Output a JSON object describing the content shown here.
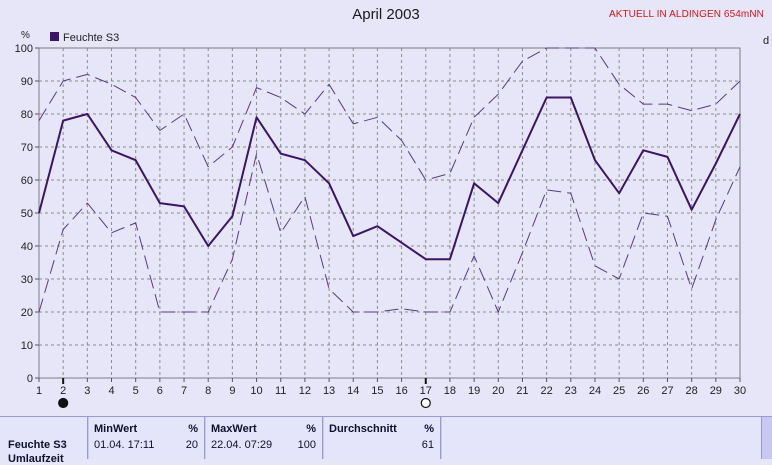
{
  "header": {
    "title": "April 2003",
    "status": "AKTUELL IN ALDINGEN 654mNN"
  },
  "chart_data": {
    "type": "line",
    "title": "April 2003",
    "ylabel": "%",
    "right_axis_label": "d",
    "x": [
      1,
      2,
      3,
      4,
      5,
      6,
      7,
      8,
      9,
      10,
      11,
      12,
      13,
      14,
      15,
      16,
      17,
      18,
      19,
      20,
      21,
      22,
      23,
      24,
      25,
      26,
      27,
      28,
      29,
      30
    ],
    "xlim": [
      1,
      30
    ],
    "ylim": [
      0,
      100
    ],
    "yticks": [
      0,
      10,
      20,
      30,
      40,
      50,
      60,
      70,
      80,
      90,
      100
    ],
    "grid": true,
    "legend_position": "top-left",
    "moon_markers": [
      {
        "day": 2,
        "phase": "new"
      },
      {
        "day": 17,
        "phase": "full"
      }
    ],
    "series": [
      {
        "name": "Feuchte S3",
        "style": "solid",
        "color": "#3c1464",
        "values": [
          50,
          78,
          80,
          69,
          66,
          53,
          52,
          40,
          49,
          79,
          68,
          66,
          59,
          43,
          46,
          41,
          36,
          36,
          59,
          53,
          69,
          85,
          85,
          66,
          56,
          69,
          67,
          51,
          65,
          80
        ]
      },
      {
        "style": "dashed",
        "color": "#5a3a82",
        "values": [
          78,
          90,
          92,
          89,
          85,
          75,
          80,
          64,
          70,
          88,
          85,
          80,
          89,
          77,
          79,
          72,
          60,
          62,
          79,
          86,
          96,
          100,
          100,
          100,
          89,
          83,
          83,
          81,
          83,
          90
        ]
      },
      {
        "style": "dashed",
        "color": "#5a3a82",
        "values": [
          20,
          45,
          53,
          44,
          47,
          20,
          20,
          20,
          36,
          68,
          44,
          55,
          27,
          20,
          20,
          21,
          20,
          20,
          37,
          20,
          38,
          57,
          56,
          34,
          30,
          50,
          49,
          27,
          48,
          64
        ]
      }
    ]
  },
  "stats": {
    "row_label": "Feuchte S3",
    "row_label_2": "Umlaufzeit",
    "min": {
      "header": "MinWert",
      "unit": "%",
      "date": "01.04.  17:11",
      "value": "20"
    },
    "max": {
      "header": "MaxWert",
      "unit": "%",
      "date": "22.04.  07:29",
      "value": "100"
    },
    "avg": {
      "header": "Durchschnitt",
      "unit": "%",
      "value": "61"
    }
  },
  "colors": {
    "background": "#e6e6f8",
    "grid": "#8c8c8c",
    "main_line": "#3c1464",
    "status_text": "#d01818"
  }
}
